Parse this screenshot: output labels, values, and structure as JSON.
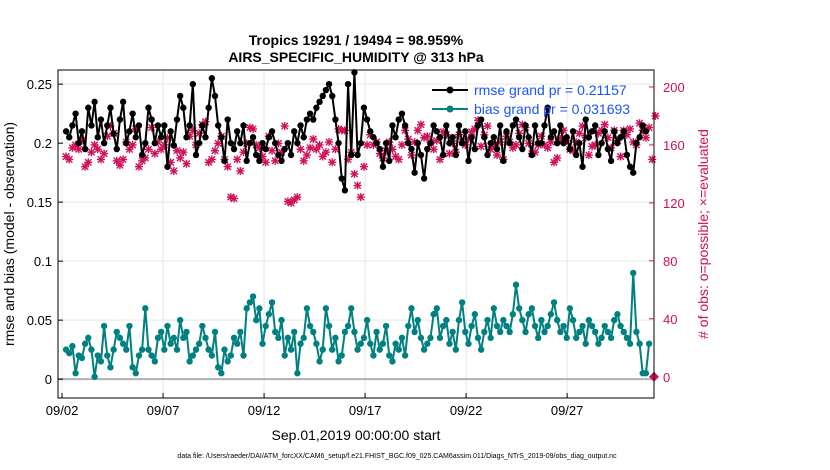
{
  "chart_data": {
    "type": "line",
    "title_line1": "Tropics 19291 / 19494 = 98.959%",
    "title_line2": "AIRS_SPECIFIC_HUMIDITY @ 313 hPa",
    "xlabel": "Sep.01,2019 00:00:00 start",
    "ylabel_left": "rmse and bias (model - observation)",
    "ylabel_right": "# of obs: o=possible; ×=evaluated",
    "footer": "data file: /Users/raeder/DAI/ATM_forcXX/CAM6_setup/f.e21.FHIST_BGC.f09_025.CAM6assim.011/Diags_NTrS_2019-09/obs_diag_output.nc",
    "xlim": [
      1.8,
      31.3
    ],
    "ylim_left": [
      -0.016,
      0.262
    ],
    "ylim_right": [
      -14.66,
      211.7
    ],
    "x_ticks": [
      2,
      7,
      12,
      17,
      22,
      27
    ],
    "x_tick_labels": [
      "09/02",
      "09/07",
      "09/12",
      "09/17",
      "09/22",
      "09/27"
    ],
    "y_left_ticks": [
      0,
      0.05,
      0.1,
      0.15,
      0.2,
      0.25
    ],
    "y_left_tick_labels": [
      "0",
      "0.05",
      "0.1",
      "0.15",
      "0.2",
      "0.25"
    ],
    "y_right_ticks": [
      0,
      40,
      80,
      120,
      160,
      200
    ],
    "y_right_tick_labels": [
      "0",
      "40",
      "80",
      "120",
      "160",
      "200"
    ],
    "legend": [
      {
        "label": "rmse grand pr = 0.21157",
        "color": "#000000"
      },
      {
        "label": "bias grand pr = 0.031693",
        "color": "#008080"
      }
    ],
    "colors": {
      "rmse": "#000000",
      "bias": "#008080",
      "obs": "#d0105a",
      "zero_line": "#b0b0b0"
    },
    "series": [
      {
        "name": "rmse",
        "values": [
          0.21,
          0.205,
          0.215,
          0.225,
          0.2,
          0.21,
          0.195,
          0.23,
          0.215,
          0.235,
          0.205,
          0.22,
          0.2,
          0.215,
          0.23,
          0.208,
          0.195,
          0.22,
          0.235,
          0.2,
          0.21,
          0.225,
          0.205,
          0.215,
          0.19,
          0.2,
          0.23,
          0.22,
          0.2,
          0.215,
          0.205,
          0.215,
          0.18,
          0.21,
          0.198,
          0.22,
          0.24,
          0.23,
          0.205,
          0.215,
          0.25,
          0.19,
          0.2,
          0.215,
          0.205,
          0.23,
          0.255,
          0.24,
          0.215,
          0.205,
          0.185,
          0.22,
          0.2,
          0.195,
          0.21,
          0.2,
          0.215,
          0.185,
          0.2,
          0.205,
          0.19,
          0.185,
          0.2,
          0.195,
          0.205,
          0.21,
          0.2,
          0.19,
          0.185,
          0.195,
          0.2,
          0.19,
          0.21,
          0.2,
          0.215,
          0.205,
          0.22,
          0.225,
          0.22,
          0.23,
          0.235,
          0.24,
          0.245,
          0.25,
          0.24,
          0.22,
          0.2,
          0.17,
          0.16,
          0.25,
          0.19,
          0.26,
          0.19,
          0.2,
          0.23,
          0.22,
          0.21,
          0.205,
          0.2,
          0.195,
          0.18,
          0.2,
          0.185,
          0.215,
          0.205,
          0.22,
          0.225,
          0.215,
          0.2,
          0.195,
          0.175,
          0.2,
          0.19,
          0.17,
          0.195,
          0.2,
          0.215,
          0.21,
          0.205,
          0.19,
          0.215,
          0.2,
          0.205,
          0.19,
          0.215,
          0.2,
          0.21,
          0.185,
          0.205,
          0.195,
          0.215,
          0.22,
          0.205,
          0.19,
          0.2,
          0.205,
          0.195,
          0.215,
          0.185,
          0.21,
          0.2,
          0.215,
          0.22,
          0.205,
          0.195,
          0.215,
          0.205,
          0.19,
          0.215,
          0.2,
          0.2,
          0.215,
          0.23,
          0.205,
          0.21,
          0.2,
          0.215,
          0.2,
          0.205,
          0.195,
          0.21,
          0.19,
          0.2,
          0.18,
          0.22,
          0.205,
          0.21,
          0.215,
          0.19,
          0.2,
          0.21,
          0.195,
          0.185,
          0.21,
          0.2,
          0.205,
          0.21,
          0.19,
          0.18,
          0.175,
          0.2,
          0.205,
          0.215,
          0.21
        ]
      },
      {
        "name": "bias",
        "values": [
          0.025,
          0.022,
          0.028,
          0.005,
          0.02,
          0.018,
          0.03,
          0.035,
          0.025,
          0.002,
          0.02,
          0.015,
          0.045,
          0.02,
          0.01,
          0.025,
          0.04,
          0.035,
          0.03,
          0.025,
          0.045,
          0.01,
          0.005,
          0.02,
          0.025,
          0.06,
          0.025,
          0.02,
          0.015,
          0.035,
          0.04,
          0.025,
          0.045,
          0.03,
          0.035,
          0.025,
          0.05,
          0.035,
          0.04,
          0.015,
          0.02,
          0.025,
          0.03,
          0.045,
          0.035,
          0.025,
          0.02,
          0.04,
          0.01,
          0.005,
          0.025,
          0.015,
          0.02,
          0.035,
          0.03,
          0.04,
          0.02,
          0.06,
          0.065,
          0.07,
          0.05,
          0.06,
          0.03,
          0.045,
          0.055,
          0.065,
          0.04,
          0.035,
          0.05,
          0.02,
          0.035,
          0.025,
          0.04,
          0.005,
          0.03,
          0.035,
          0.06,
          0.045,
          0.04,
          0.03,
          0.015,
          0.025,
          0.06,
          0.045,
          0.025,
          0.035,
          0.015,
          0.02,
          0.04,
          0.045,
          0.06,
          0.04,
          0.025,
          0.03,
          0.035,
          0.05,
          0.03,
          0.02,
          0.04,
          0.025,
          0.03,
          0.045,
          0.02,
          0.015,
          0.03,
          0.025,
          0.035,
          0.02,
          0.045,
          0.06,
          0.04,
          0.05,
          0.035,
          0.025,
          0.03,
          0.035,
          0.055,
          0.06,
          0.035,
          0.045,
          0.05,
          0.03,
          0.04,
          0.025,
          0.05,
          0.065,
          0.04,
          0.03,
          0.045,
          0.055,
          0.035,
          0.025,
          0.04,
          0.05,
          0.035,
          0.06,
          0.045,
          0.04,
          0.05,
          0.045,
          0.04,
          0.055,
          0.08,
          0.06,
          0.05,
          0.04,
          0.055,
          0.06,
          0.045,
          0.035,
          0.05,
          0.04,
          0.045,
          0.055,
          0.065,
          0.05,
          0.04,
          0.045,
          0.035,
          0.06,
          0.05,
          0.035,
          0.04,
          0.045,
          0.03,
          0.05,
          0.045,
          0.04,
          0.03,
          0.035,
          0.045,
          0.04,
          0.035,
          0.05,
          0.055,
          0.045,
          0.04,
          0.035,
          0.03,
          0.09,
          0.04,
          0.03,
          0.005,
          0.005,
          0.03
        ]
      },
      {
        "name": "obs_evaluated",
        "values": [
          152,
          150,
          158,
          160,
          157,
          163,
          145,
          148,
          155,
          160,
          157,
          150,
          154,
          166,
          173,
          168,
          149,
          146,
          150,
          162,
          157,
          160,
          171,
          145,
          149,
          151,
          157,
          172,
          154,
          162,
          157,
          160,
          165,
          148,
          142,
          156,
          151,
          155,
          147,
          166,
          170,
          160,
          168,
          174,
          176,
          148,
          150,
          156,
          161,
          166,
          150,
          145,
          124,
          123,
          150,
          142,
          155,
          161,
          172,
          171,
          160,
          158,
          152,
          148,
          166,
          156,
          149,
          161,
          155,
          173,
          121,
          120,
          122,
          124,
          157,
          149,
          153,
          158,
          164,
          157,
          160,
          152,
          155,
          162,
          148,
          157,
          171,
          170,
          170,
          150,
          155,
          140,
          132,
          124,
          145,
          160,
          167,
          160,
          162,
          154,
          151,
          156,
          162,
          157,
          152,
          150,
          160,
          170,
          164,
          153,
          162,
          170,
          174,
          165,
          166,
          162,
          157,
          163,
          150,
          169,
          167,
          154,
          161,
          155,
          167,
          162,
          160,
          164,
          169,
          171,
          177,
          159,
          167,
          173,
          157,
          160,
          153,
          162,
          150,
          166,
          162,
          158,
          160,
          168,
          174,
          172,
          161,
          154,
          155,
          160,
          166,
          160,
          158,
          162,
          148,
          151,
          164,
          170,
          163,
          157,
          156,
          162,
          168,
          173,
          165,
          153,
          159,
          160,
          168,
          170,
          174,
          165,
          158,
          170,
          163,
          152,
          170,
          167,
          171,
          162,
          160,
          175,
          170,
          165,
          172,
          150,
          180
        ]
      }
    ]
  }
}
